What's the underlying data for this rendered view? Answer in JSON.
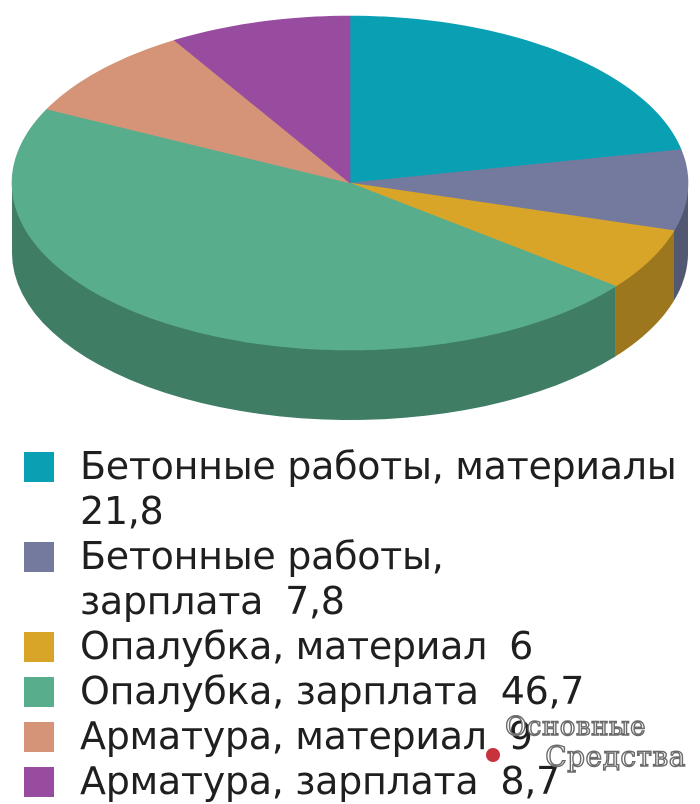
{
  "chart_data": {
    "type": "pie",
    "style": "3d",
    "title": "",
    "categories": [
      "Бетонные работы, материалы",
      "Бетонные работы, зарплата",
      "Опалубка, материал",
      "Опалубка, зарплата",
      "Арматура, материал",
      "Арматура, зарплата"
    ],
    "values": [
      21.8,
      7.8,
      6,
      46.7,
      9,
      8.7
    ],
    "value_labels": [
      "21,8",
      "7,8",
      "6",
      "46,7",
      "9",
      "8,7"
    ],
    "colors": [
      "#0aa0b4",
      "#737a9e",
      "#d9a528",
      "#58ad8c",
      "#d59478",
      "#984ca0"
    ],
    "legend_position": "bottom"
  },
  "watermark": {
    "line1": "Основные",
    "line2": "Средства"
  }
}
